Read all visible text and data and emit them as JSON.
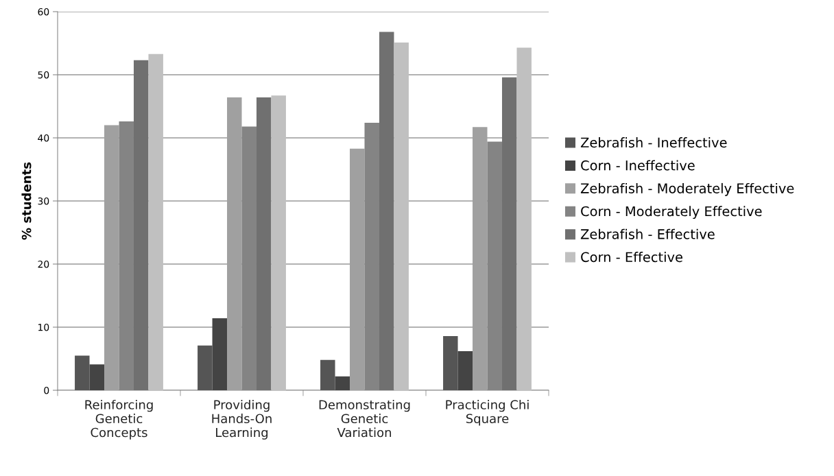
{
  "chart_data": {
    "type": "bar",
    "ylabel": "% students",
    "categories": [
      "Reinforcing\nGenetic\nConcepts",
      "Providing\nHands-On\nLearning",
      "Demonstrating\nGenetic\nVariation",
      "Practicing Chi\nSquare"
    ],
    "series": [
      {
        "name": "Zebrafish - Ineffective",
        "color": "#555555",
        "values": [
          5.5,
          7.1,
          4.8,
          8.6
        ]
      },
      {
        "name": "Corn - Ineffective",
        "color": "#444444",
        "values": [
          4.1,
          11.4,
          2.2,
          6.2
        ]
      },
      {
        "name": "Zebrafish - Moderately Effective",
        "color": "#a0a0a0",
        "values": [
          42.0,
          46.4,
          38.3,
          41.7
        ]
      },
      {
        "name": "Corn - Moderately Effective",
        "color": "#848484",
        "values": [
          42.6,
          41.8,
          42.4,
          39.4
        ]
      },
      {
        "name": "Zebrafish - Effective",
        "color": "#707070",
        "values": [
          52.3,
          46.4,
          56.8,
          49.6
        ]
      },
      {
        "name": "Corn - Effective",
        "color": "#c0c0c0",
        "values": [
          53.3,
          46.7,
          55.1,
          54.3
        ]
      }
    ],
    "ylim": [
      0,
      60
    ],
    "yticks": [
      0,
      10,
      20,
      30,
      40,
      50,
      60
    ],
    "grid": "y",
    "legend": "right"
  }
}
